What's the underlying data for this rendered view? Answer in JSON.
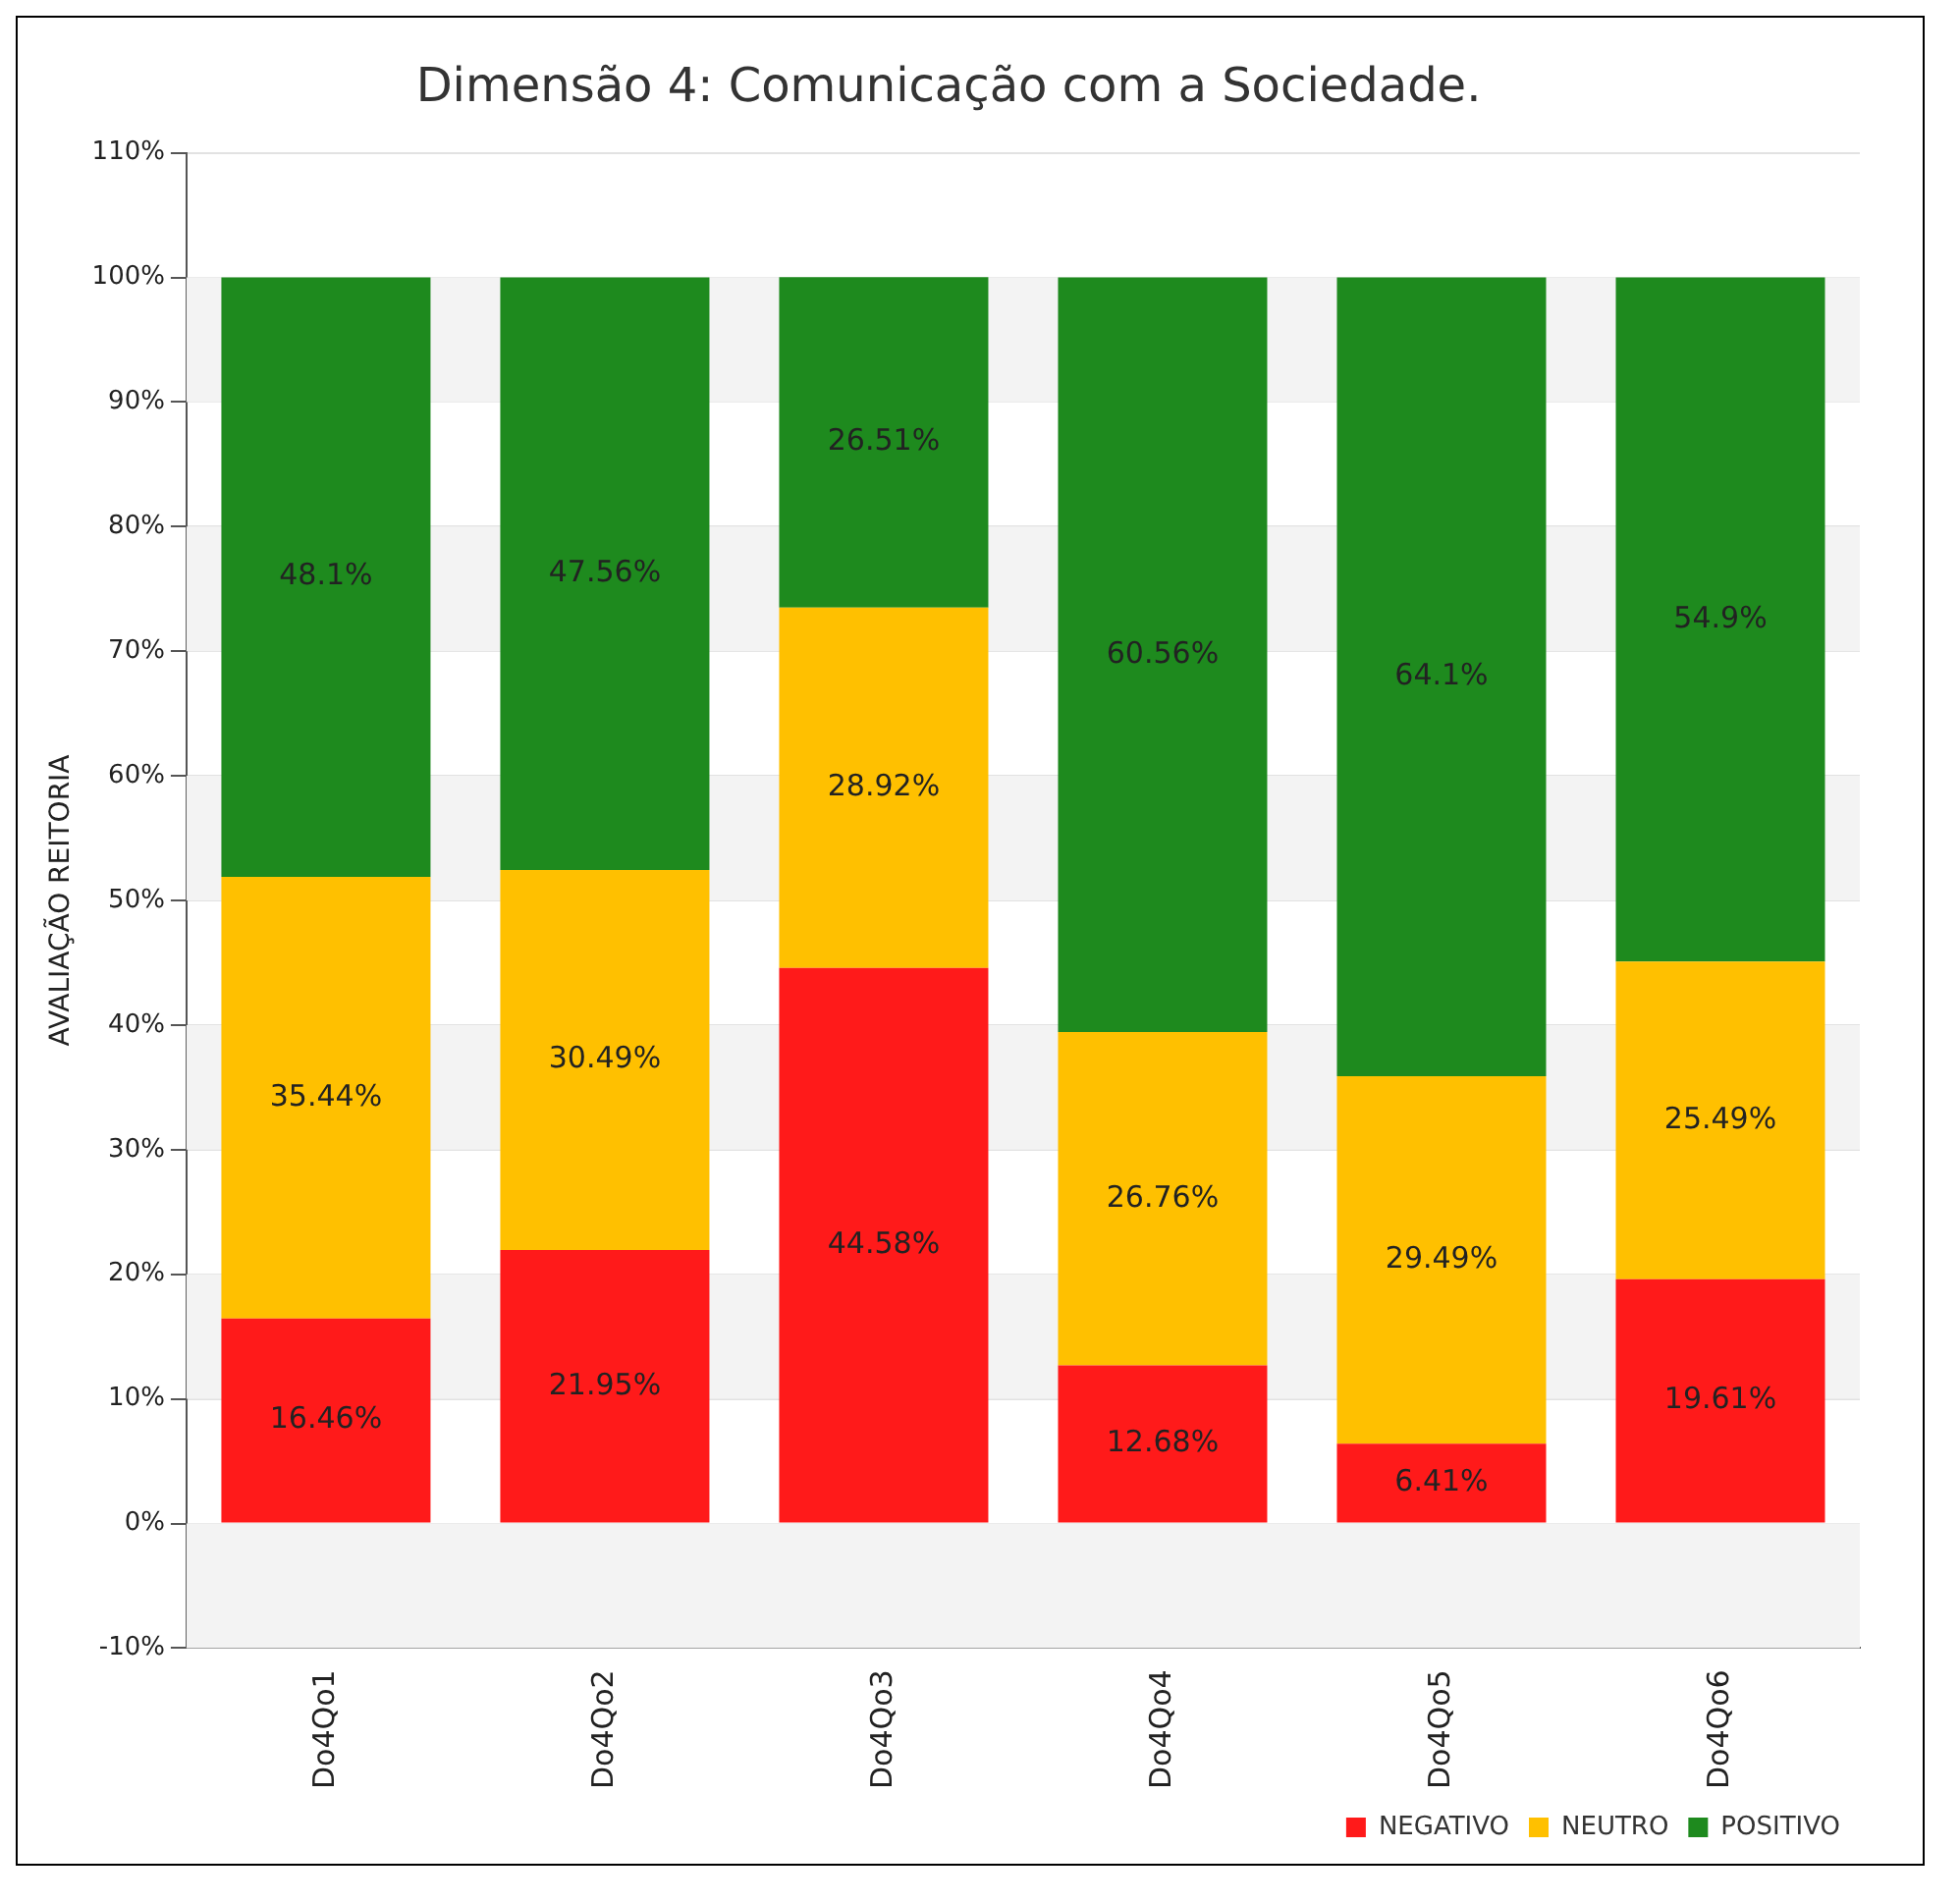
{
  "chart_data": {
    "type": "bar",
    "title": "Dimensão 4: Comunicação com a Sociedade.",
    "ylabel": "AVALIAÇÃO REITORIA",
    "categories": [
      "Do4Qo1",
      "Do4Qo2",
      "Do4Qo3",
      "Do4Qo4",
      "Do4Qo5",
      "Do4Qo6"
    ],
    "stacked": true,
    "series": [
      {
        "name": "NEGATIVO",
        "color": "#ff1a1a",
        "values": [
          16.46,
          21.95,
          44.58,
          12.68,
          6.41,
          19.61
        ],
        "value_labels": [
          "16.46%",
          "21.95%",
          "44.58%",
          "12.68%",
          "6.41%",
          "19.61%"
        ]
      },
      {
        "name": "NEUTRO",
        "color": "#ffc000",
        "values": [
          35.44,
          30.49,
          28.92,
          26.76,
          29.49,
          25.49
        ],
        "value_labels": [
          "35.44%",
          "30.49%",
          "28.92%",
          "26.76%",
          "29.49%",
          "25.49%"
        ]
      },
      {
        "name": "POSITIVO",
        "color": "#1e8a1e",
        "values": [
          48.1,
          47.56,
          26.51,
          60.56,
          64.1,
          54.9
        ],
        "value_labels": [
          "48.1%",
          "47.56%",
          "26.51%",
          "60.56%",
          "64.1%",
          "54.9%"
        ]
      }
    ],
    "ylim": [
      -10,
      110
    ],
    "yticks": [
      {
        "value": -10,
        "label": "-10%"
      },
      {
        "value": 0,
        "label": "0%"
      },
      {
        "value": 10,
        "label": "10%"
      },
      {
        "value": 20,
        "label": "20%"
      },
      {
        "value": 30,
        "label": "30%"
      },
      {
        "value": 40,
        "label": "40%"
      },
      {
        "value": 50,
        "label": "50%"
      },
      {
        "value": 60,
        "label": "60%"
      },
      {
        "value": 70,
        "label": "70%"
      },
      {
        "value": 80,
        "label": "80%"
      },
      {
        "value": 90,
        "label": "90%"
      },
      {
        "value": 100,
        "label": "100%"
      },
      {
        "value": 110,
        "label": "110%"
      }
    ],
    "grid": "y",
    "legend": "bottom right"
  }
}
